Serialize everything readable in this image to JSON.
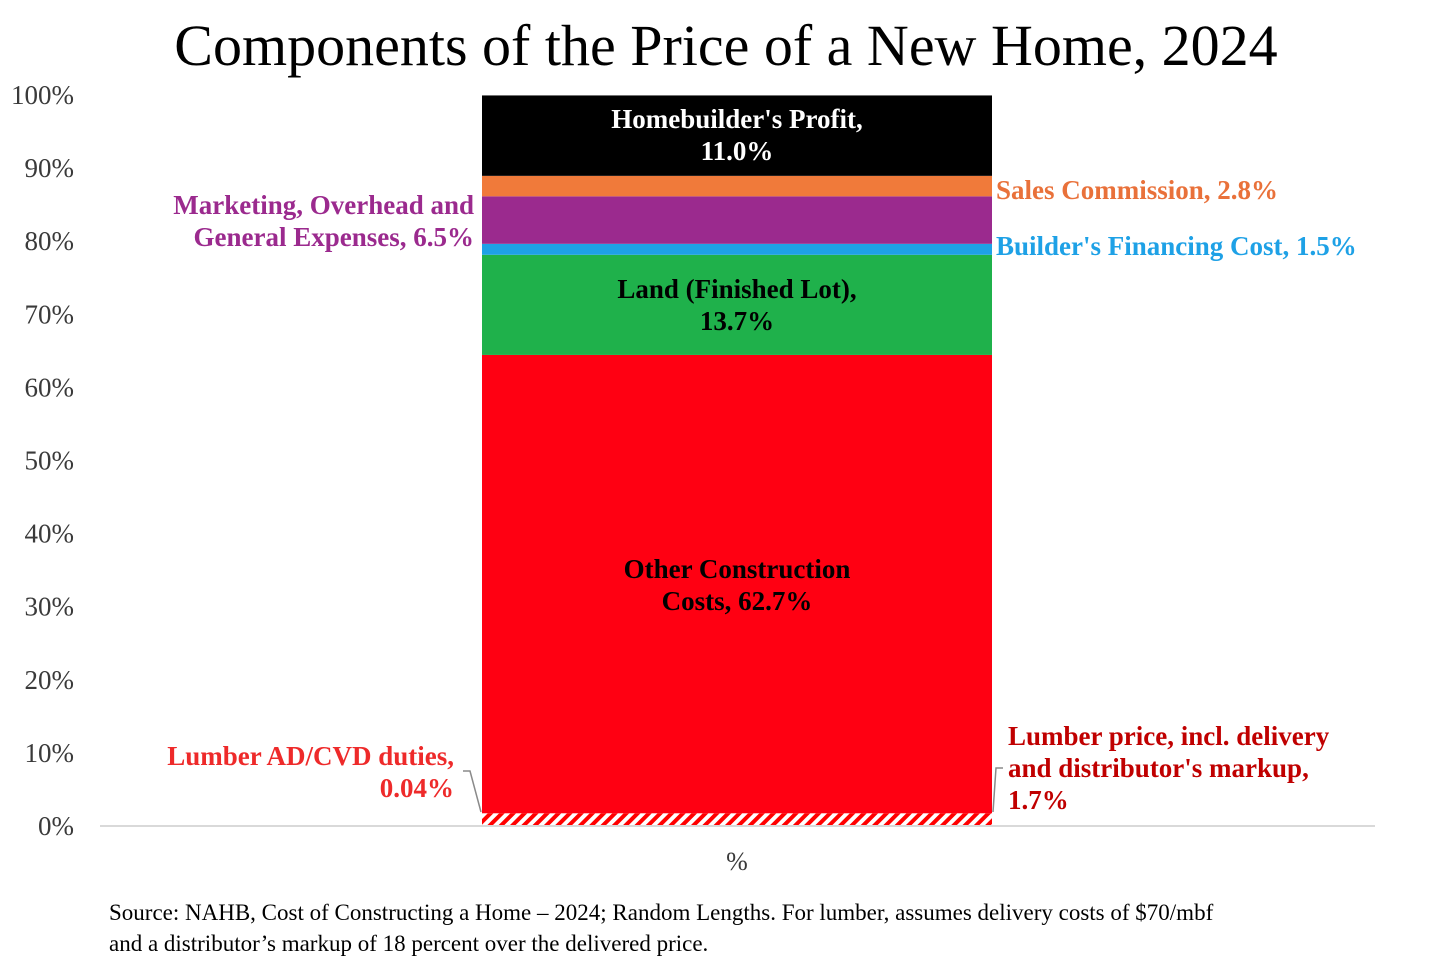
{
  "chart_data": {
    "type": "bar",
    "stacked": true,
    "title": "Components of the Price of a New Home, 2024",
    "categories": [
      "%"
    ],
    "ylim": [
      0,
      100
    ],
    "yticks": [
      "0%",
      "10%",
      "20%",
      "30%",
      "40%",
      "50%",
      "60%",
      "70%",
      "80%",
      "90%",
      "100%"
    ],
    "grid": false,
    "series": [
      {
        "key": "lumber_duties",
        "values": [
          0.04
        ],
        "color": "#ff0000",
        "pattern": "hatch",
        "label_lines": [
          "Lumber AD/CVD duties,",
          "0.04%"
        ],
        "label_color": "#ee2a2a"
      },
      {
        "key": "lumber_price",
        "values": [
          1.7
        ],
        "color": "#ff0000",
        "pattern": "hatch",
        "label_lines": [
          "Lumber price, incl. delivery",
          "and distributor's markup,",
          "1.7%"
        ],
        "label_color": "#c00000"
      },
      {
        "key": "other_construction",
        "values": [
          62.7
        ],
        "color": "#ff0012",
        "label_lines": [
          "Other Construction",
          "Costs, 62.7%"
        ],
        "label_color": "#000000"
      },
      {
        "key": "land",
        "values": [
          13.7
        ],
        "color": "#1fb14b",
        "label_lines": [
          "Land (Finished Lot),",
          "13.7%"
        ],
        "label_color": "#000000"
      },
      {
        "key": "financing",
        "values": [
          1.5
        ],
        "color": "#1ea1e6",
        "label_lines": [
          "Builder's Financing Cost, 1.5%"
        ],
        "label_color": "#1ea1e6"
      },
      {
        "key": "marketing",
        "values": [
          6.5
        ],
        "color": "#9b2a8e",
        "label_lines": [
          "Marketing, Overhead and",
          "General Expenses, 6.5%"
        ],
        "label_color": "#9b2a8e"
      },
      {
        "key": "sales_commission",
        "values": [
          2.8
        ],
        "color": "#f07a3a",
        "label_lines": [
          "Sales Commission, 2.8%"
        ],
        "label_color": "#e9713a"
      },
      {
        "key": "profit",
        "values": [
          11.0
        ],
        "color": "#000000",
        "label_lines": [
          "Homebuilder's Profit,",
          "11.0%"
        ],
        "label_color": "#ffffff"
      }
    ]
  },
  "source_lines": [
    "Source: NAHB, Cost of Constructing a Home – 2024; Random Lengths.  For lumber, assumes delivery costs of $70/mbf",
    "and a distributor’s markup of 18 percent over the delivered price."
  ]
}
